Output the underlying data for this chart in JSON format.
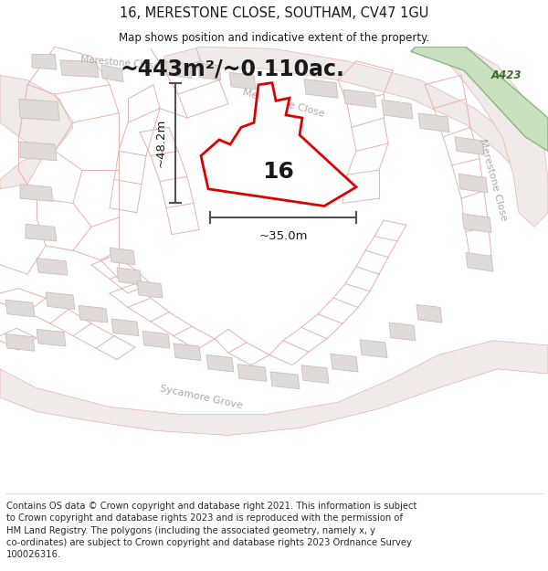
{
  "title_line1": "16, MERESTONE CLOSE, SOUTHAM, CV47 1GU",
  "title_line2": "Map shows position and indicative extent of the property.",
  "area_text": "~443m²/~0.110ac.",
  "dim_height": "~48.2m",
  "dim_width": "~35.0m",
  "plot_number": "16",
  "footer_text": "Contains OS data © Crown copyright and database right 2021. This information is subject to Crown copyright and database rights 2023 and is reproduced with the permission of HM Land Registry. The polygons (including the associated geometry, namely x, y co-ordinates) are subject to Crown copyright and database rights 2023 Ordnance Survey 100026316.",
  "map_bg": "#f7f4f2",
  "plot_line_color": "#e8b0b0",
  "plot_outline": "#dd0000",
  "plot_fill": "#ffffff",
  "building_fill": "#e0dbd8",
  "building_outline": "#c8bfbc",
  "green_fill": "#c8dfc0",
  "green_outline": "#8ab880",
  "dim_line_color": "#505050",
  "text_dark": "#1a1a1a",
  "text_road": "#b0a8a5",
  "title_fontsize": 10.5,
  "subtitle_fontsize": 8.5,
  "area_fontsize": 17,
  "dim_fontsize": 9.5,
  "plot_num_fontsize": 18,
  "footer_fontsize": 7.2,
  "road_label_fontsize": 8.0,
  "a423_fontsize": 8.5
}
